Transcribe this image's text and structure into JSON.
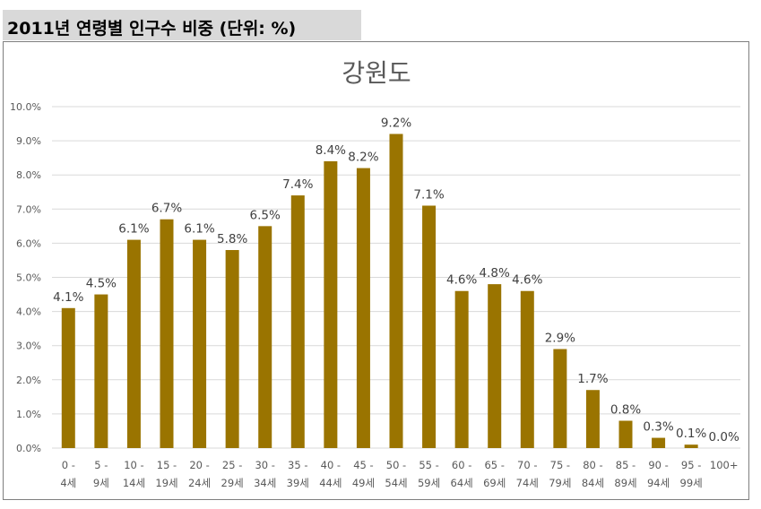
{
  "header": {
    "title": "2011년 연령별 인구수 비중 (단위: %)"
  },
  "chart_data": {
    "type": "bar",
    "title": "강원도",
    "xlabel": "",
    "ylabel": "",
    "ylim": [
      0,
      10
    ],
    "grid": true,
    "bar_color": "#9a7400",
    "grid_color": "#d9d9d9",
    "y_ticks": [
      "0.0%",
      "1.0%",
      "2.0%",
      "3.0%",
      "4.0%",
      "5.0%",
      "6.0%",
      "7.0%",
      "8.0%",
      "9.0%",
      "10.0%"
    ],
    "categories": [
      [
        "0 -",
        "4세"
      ],
      [
        "5 -",
        "9세"
      ],
      [
        "10 -",
        "14세"
      ],
      [
        "15 -",
        "19세"
      ],
      [
        "20 -",
        "24세"
      ],
      [
        "25 -",
        "29세"
      ],
      [
        "30 -",
        "34세"
      ],
      [
        "35 -",
        "39세"
      ],
      [
        "40 -",
        "44세"
      ],
      [
        "45 -",
        "49세"
      ],
      [
        "50 -",
        "54세"
      ],
      [
        "55 -",
        "59세"
      ],
      [
        "60 -",
        "64세"
      ],
      [
        "65 -",
        "69세"
      ],
      [
        "70 -",
        "74세"
      ],
      [
        "75 -",
        "79세"
      ],
      [
        "80 -",
        "84세"
      ],
      [
        "85 -",
        "89세"
      ],
      [
        "90 -",
        "94세"
      ],
      [
        "95 -",
        "99세"
      ],
      [
        "100+"
      ]
    ],
    "values": [
      4.1,
      4.5,
      6.1,
      6.7,
      6.1,
      5.8,
      6.5,
      7.4,
      8.4,
      8.2,
      9.2,
      7.1,
      4.6,
      4.8,
      4.6,
      2.9,
      1.7,
      0.8,
      0.3,
      0.1,
      0.0
    ],
    "data_labels": [
      "4.1%",
      "4.5%",
      "6.1%",
      "6.7%",
      "6.1%",
      "5.8%",
      "6.5%",
      "7.4%",
      "8.4%",
      "8.2%",
      "9.2%",
      "7.1%",
      "4.6%",
      "4.8%",
      "4.6%",
      "2.9%",
      "1.7%",
      "0.8%",
      "0.3%",
      "0.1%",
      "0.0%"
    ]
  }
}
